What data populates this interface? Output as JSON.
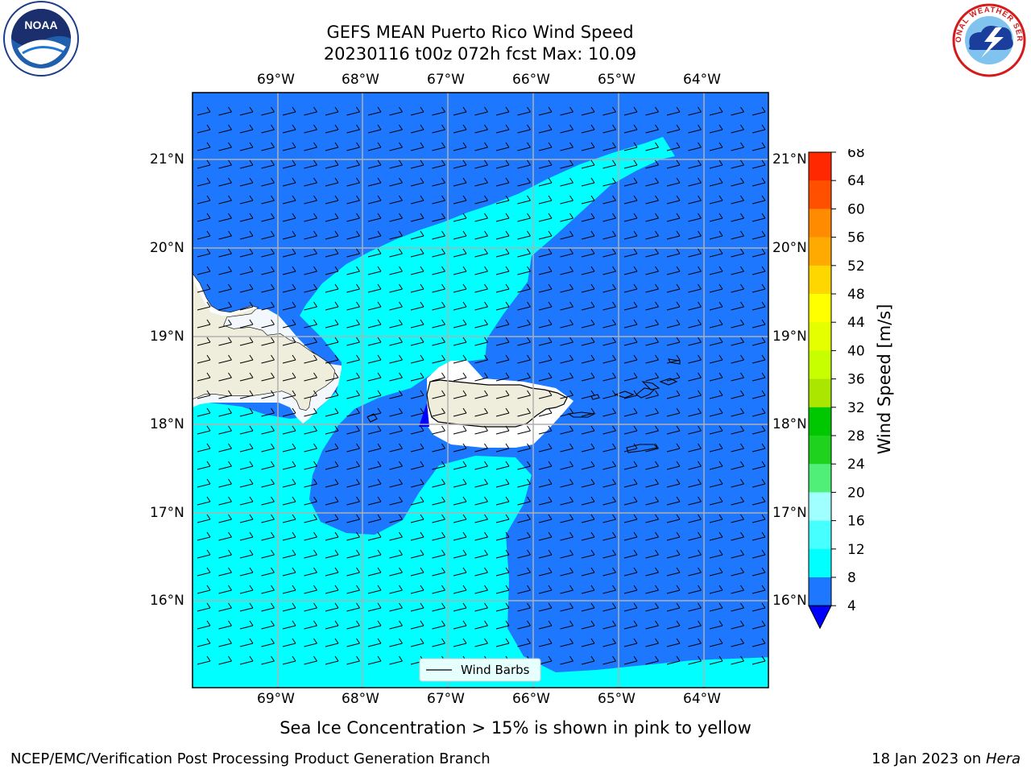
{
  "header": {
    "title_line1": "GEFS MEAN Puerto Rico Wind Speed",
    "title_line2": "20230116 t00z 072h fcst   Max: 10.09"
  },
  "logos": {
    "left_name": "noaa-logo",
    "left_text": "NOAA",
    "right_name": "national-weather-service-logo",
    "right_text": "NATIONAL WEATHER SERVICE"
  },
  "map": {
    "lon_labels": [
      "69°W",
      "68°W",
      "67°W",
      "66°W",
      "65°W",
      "64°W"
    ],
    "lat_labels": [
      "21°N",
      "20°N",
      "19°N",
      "18°N",
      "17°N",
      "16°N"
    ],
    "land_color": "#efeddc",
    "ocean_low_color": "#1e78ff",
    "ocean_mid_color": "#00ffff",
    "min_color": "#0000ff",
    "legend_label": "Wind Barbs"
  },
  "colorbar": {
    "label": "Wind Speed [m/s]",
    "ticks": [
      "4",
      "8",
      "12",
      "16",
      "20",
      "24",
      "28",
      "32",
      "36",
      "40",
      "44",
      "48",
      "52",
      "56",
      "60",
      "64",
      "68"
    ],
    "colors": [
      "#1e78ff",
      "#00ffff",
      "#46ffff",
      "#a0ffff",
      "#50f078",
      "#1ed21e",
      "#00c800",
      "#aae600",
      "#c8ff00",
      "#e6ff00",
      "#ffff00",
      "#ffd700",
      "#ffaa00",
      "#ff8c00",
      "#ff5000",
      "#ff2800"
    ],
    "extend_color": "#0000ff"
  },
  "note": "Sea Ice Concentration > 15% is shown in pink to yellow",
  "footer": {
    "left": "NCEP/EMC/Verification Post Processing Product Generation Branch",
    "right_prefix": "18 Jan 2023 on ",
    "right_machine": "Hera"
  }
}
